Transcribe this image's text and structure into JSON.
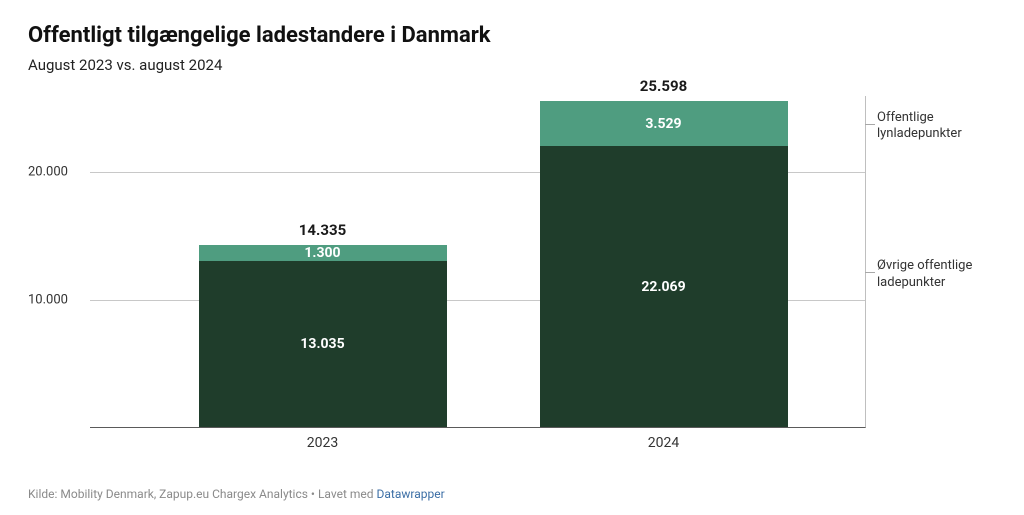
{
  "title": "Offentligt tilgængelige ladestandere i Danmark",
  "subtitle": "August 2023 vs. august 2024",
  "footer": {
    "source_prefix": "Kilde: ",
    "source_text": "Mobility Denmark, Zapup.eu Chargex Analytics",
    "sep": " • ",
    "made_with_prefix": "Lavet med ",
    "made_with_link": "Datawrapper"
  },
  "chart": {
    "type": "stacked-bar",
    "y_max": 26000,
    "y_ticks": [
      {
        "value": 10000,
        "label": "10.000"
      },
      {
        "value": 20000,
        "label": "20.000"
      }
    ],
    "colors": {
      "series_bottom": "#1f3d2b",
      "series_top": "#4f9d80",
      "background": "#ffffff",
      "grid": "#c8c8c8",
      "axis": "#5a5a5a"
    },
    "series_names": {
      "top": "Offentlige lynladepunkter",
      "bottom": "Øvrige offentlige ladepunkter"
    },
    "categories": [
      {
        "name": "2023",
        "total_label": "14.335",
        "segments": {
          "bottom": {
            "value": 13035,
            "label": "13.035"
          },
          "top": {
            "value": 1300,
            "label": "1.300"
          }
        }
      },
      {
        "name": "2024",
        "total_label": "25.598",
        "segments": {
          "bottom": {
            "value": 22069,
            "label": "22.069"
          },
          "top": {
            "value": 3529,
            "label": "3.529"
          }
        }
      }
    ],
    "bar_positions_pct": [
      14,
      58
    ],
    "bar_width_pct": 32
  }
}
